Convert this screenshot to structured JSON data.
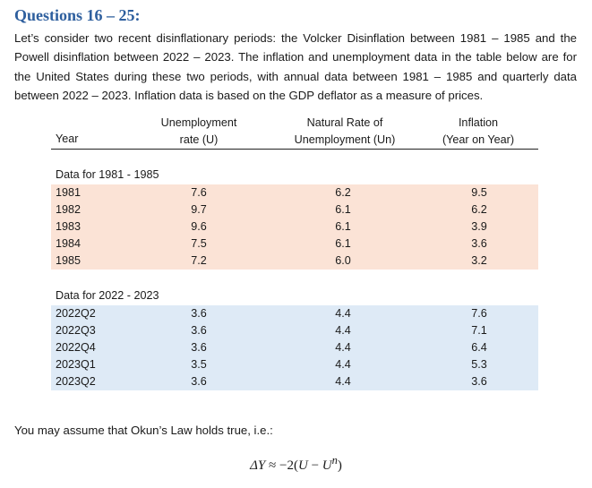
{
  "heading": "Questions 16 – 25:",
  "intro": "Let’s consider two recent disinflationary periods: the Volcker Disinflation between 1981 – 1985 and the Powell disinflation between 2022 – 2023. The inflation and unemployment data in the table below are for the United States during these two periods, with annual data between 1981 – 1985 and quarterly data between 2022 – 2023. Inflation data is based on the GDP deflator as a measure of prices.",
  "table": {
    "headers": {
      "year": "Year",
      "u_line1": "Unemployment",
      "u_line2": "rate (U)",
      "un_line1": "Natural Rate of",
      "un_line2": "Unemployment (Un)",
      "inf_line1": "Inflation",
      "inf_line2": "(Year on Year)"
    },
    "groups": [
      {
        "label": "Data for 1981 - 1985",
        "rows": [
          {
            "year": "1981",
            "u": "7.6",
            "un": "6.2",
            "inf": "9.5"
          },
          {
            "year": "1982",
            "u": "9.7",
            "un": "6.1",
            "inf": "6.2"
          },
          {
            "year": "1983",
            "u": "9.6",
            "un": "6.1",
            "inf": "3.9"
          },
          {
            "year": "1984",
            "u": "7.5",
            "un": "6.1",
            "inf": "3.6"
          },
          {
            "year": "1985",
            "u": "7.2",
            "un": "6.0",
            "inf": "3.2"
          }
        ]
      },
      {
        "label": "Data for 2022 - 2023",
        "rows": [
          {
            "year": "2022Q2",
            "u": "3.6",
            "un": "4.4",
            "inf": "7.6"
          },
          {
            "year": "2022Q3",
            "u": "3.6",
            "un": "4.4",
            "inf": "7.1"
          },
          {
            "year": "2022Q4",
            "u": "3.6",
            "un": "4.4",
            "inf": "6.4"
          },
          {
            "year": "2023Q1",
            "u": "3.5",
            "un": "4.4",
            "inf": "5.3"
          },
          {
            "year": "2023Q2",
            "u": "3.6",
            "un": "4.4",
            "inf": "3.6"
          }
        ]
      }
    ]
  },
  "note": "You may assume that Okun’s Law holds true, i.e.:",
  "formula": {
    "delta_y": "ΔY",
    "approx": " ≈ −2(",
    "u": "U",
    "minus": " − ",
    "un_base": "U",
    "un_sup": "n",
    "close": ")"
  }
}
